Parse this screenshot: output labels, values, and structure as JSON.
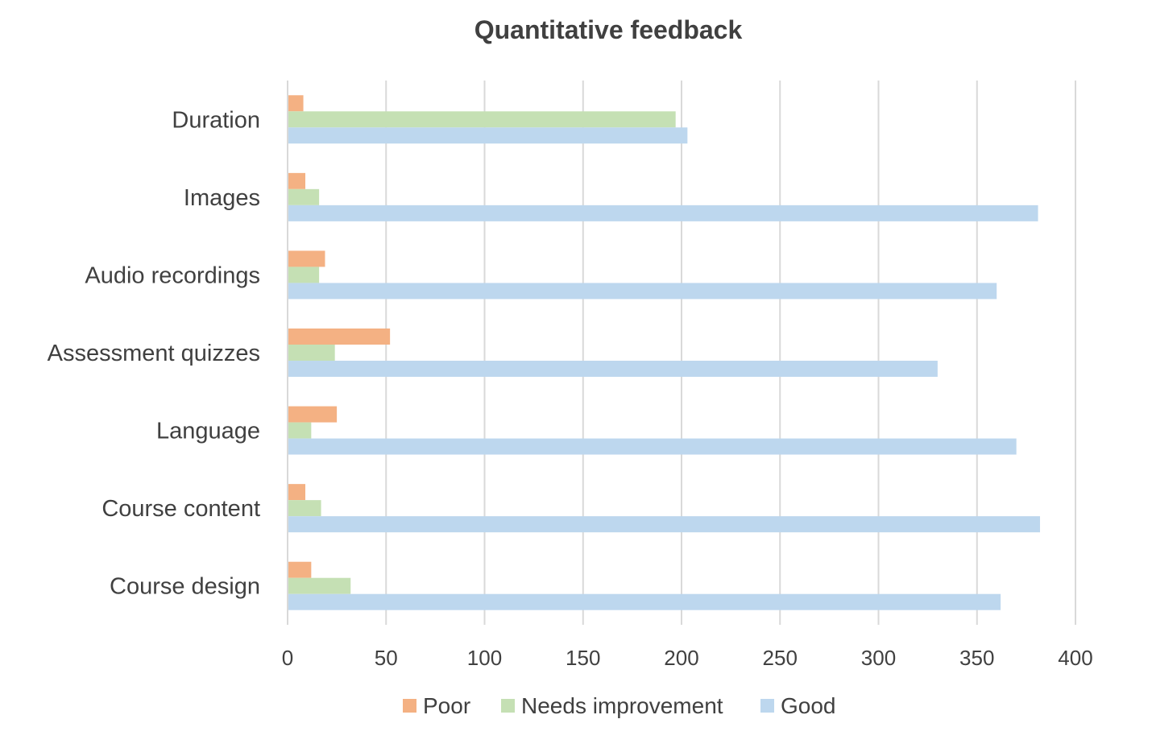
{
  "chart_data": {
    "type": "bar",
    "orientation": "horizontal",
    "title": "Quantitative feedback",
    "xlabel": "",
    "ylabel": "",
    "categories": [
      "Duration",
      "Images",
      "Audio recordings",
      "Assessment quizzes",
      "Language",
      "Course content",
      "Course design"
    ],
    "series": [
      {
        "name": "Poor",
        "color": "#f4b183",
        "values": [
          8,
          9,
          19,
          52,
          25,
          9,
          12
        ]
      },
      {
        "name": "Needs improvement",
        "color": "#c5e0b4",
        "values": [
          197,
          16,
          16,
          24,
          12,
          17,
          32
        ]
      },
      {
        "name": "Good",
        "color": "#bdd7ee",
        "values": [
          203,
          381,
          360,
          330,
          370,
          382,
          362
        ]
      }
    ],
    "xlim": [
      0,
      400
    ],
    "xticks": [
      "0",
      "50",
      "100",
      "150",
      "200",
      "250",
      "300",
      "350",
      "400"
    ],
    "tick_values": [
      0,
      50,
      100,
      150,
      200,
      250,
      300,
      350,
      400
    ],
    "grid": true,
    "legend_position": "bottom"
  }
}
